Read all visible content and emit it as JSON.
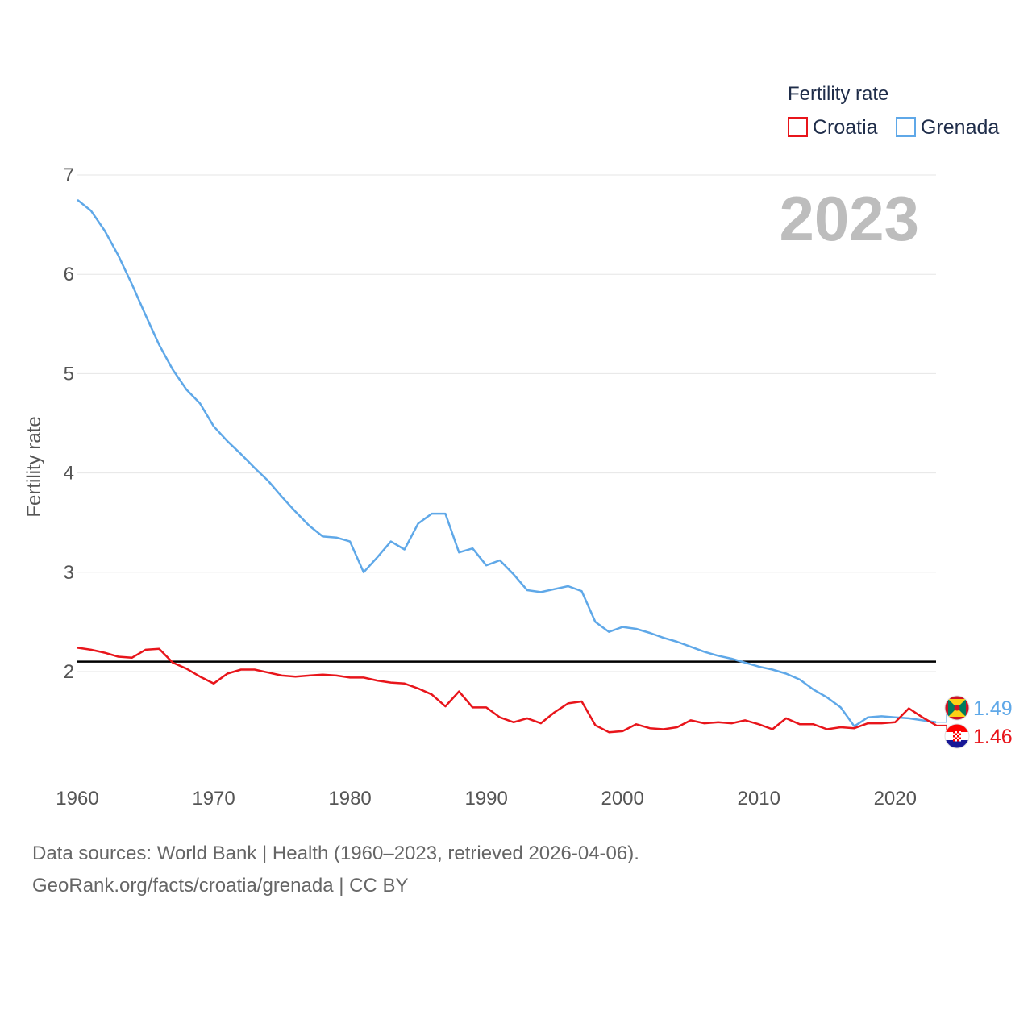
{
  "chart_data": {
    "type": "line",
    "ylabel": "Fertility rate",
    "ylim": [
      1.0,
      7.0
    ],
    "xlim": [
      1960,
      2023
    ],
    "yticks": [
      "2",
      "3",
      "4",
      "5",
      "6",
      "7"
    ],
    "xticks": [
      "1960",
      "1970",
      "1980",
      "1990",
      "2000",
      "2010",
      "2020"
    ],
    "legend": {
      "title": "Fertility rate",
      "placement": "top-right"
    },
    "current_year": "2023",
    "reference_line": {
      "value": 2.1,
      "color": "#000000"
    },
    "x": [
      1960,
      1961,
      1962,
      1963,
      1964,
      1965,
      1966,
      1967,
      1968,
      1969,
      1970,
      1971,
      1972,
      1973,
      1974,
      1975,
      1976,
      1977,
      1978,
      1979,
      1980,
      1981,
      1982,
      1983,
      1984,
      1985,
      1986,
      1987,
      1988,
      1989,
      1990,
      1991,
      1992,
      1993,
      1994,
      1995,
      1996,
      1997,
      1998,
      1999,
      2000,
      2001,
      2002,
      2003,
      2004,
      2005,
      2006,
      2007,
      2008,
      2009,
      2010,
      2011,
      2012,
      2013,
      2014,
      2015,
      2016,
      2017,
      2018,
      2019,
      2020,
      2021,
      2022,
      2023
    ],
    "series": [
      {
        "name": "Croatia",
        "color": "#e8151b",
        "end_label": "1.46",
        "flag": "croatia-flag",
        "values": [
          2.24,
          2.22,
          2.19,
          2.15,
          2.14,
          2.22,
          2.23,
          2.09,
          2.03,
          1.95,
          1.88,
          1.98,
          2.02,
          2.02,
          1.99,
          1.96,
          1.95,
          1.96,
          1.97,
          1.96,
          1.94,
          1.94,
          1.91,
          1.89,
          1.88,
          1.83,
          1.77,
          1.65,
          1.8,
          1.64,
          1.64,
          1.54,
          1.49,
          1.53,
          1.48,
          1.59,
          1.68,
          1.7,
          1.46,
          1.39,
          1.4,
          1.47,
          1.43,
          1.42,
          1.44,
          1.51,
          1.48,
          1.49,
          1.48,
          1.51,
          1.47,
          1.42,
          1.53,
          1.47,
          1.47,
          1.42,
          1.44,
          1.43,
          1.48,
          1.48,
          1.49,
          1.63,
          1.54,
          1.46
        ]
      },
      {
        "name": "Grenada",
        "color": "#5fa8e8",
        "end_label": "1.49",
        "flag": "grenada-flag",
        "values": [
          6.75,
          6.64,
          6.44,
          6.19,
          5.9,
          5.59,
          5.29,
          5.04,
          4.84,
          4.7,
          4.47,
          4.32,
          4.19,
          4.05,
          3.92,
          3.76,
          3.61,
          3.47,
          3.36,
          3.35,
          3.31,
          3.0,
          3.15,
          3.31,
          3.23,
          3.49,
          3.59,
          3.59,
          3.2,
          3.24,
          3.07,
          3.12,
          2.98,
          2.82,
          2.8,
          2.83,
          2.86,
          2.81,
          2.5,
          2.4,
          2.45,
          2.43,
          2.39,
          2.34,
          2.3,
          2.25,
          2.2,
          2.16,
          2.13,
          2.09,
          2.05,
          2.02,
          1.98,
          1.92,
          1.82,
          1.74,
          1.64,
          1.45,
          1.54,
          1.55,
          1.54,
          1.53,
          1.51,
          1.49
        ]
      }
    ]
  },
  "footer": {
    "sources": "Data sources: World Bank | Health (1960–2023, retrieved 2026-04-06).",
    "link": "GeoRank.org/facts/croatia/grenada | CC BY"
  }
}
